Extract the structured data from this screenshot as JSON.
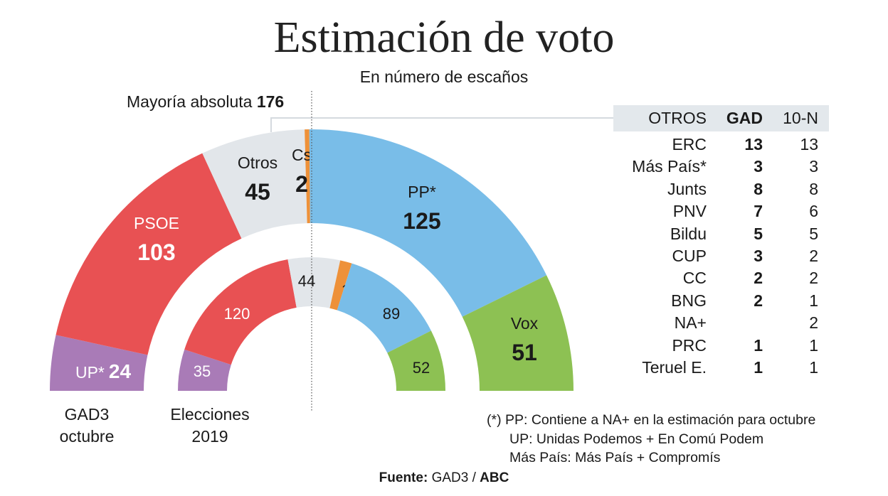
{
  "title": "Estimación de voto",
  "subtitle": "En número de escaños",
  "majority": {
    "label": "Mayoría absoluta",
    "value": "176"
  },
  "chart_data": [
    {
      "type": "pie",
      "variant": "hemicycle",
      "ring": "outer",
      "label_lines": [
        "GAD3",
        "octubre"
      ],
      "total": 350,
      "slices": [
        {
          "name": "UP*",
          "value": 24,
          "color": "#a97bb7"
        },
        {
          "name": "PSOE",
          "value": 103,
          "color": "#e85153"
        },
        {
          "name": "Otros",
          "value": 45,
          "color": "#e2e6ea"
        },
        {
          "name": "Cs",
          "value": 2,
          "color": "#ee9139"
        },
        {
          "name": "PP*",
          "value": 125,
          "color": "#79bde8"
        },
        {
          "name": "Vox",
          "value": 51,
          "color": "#8dc153"
        }
      ]
    },
    {
      "type": "pie",
      "variant": "hemicycle",
      "ring": "inner",
      "label_lines": [
        "Elecciones",
        "2019"
      ],
      "total": 350,
      "slices": [
        {
          "name": "UP",
          "value": 35,
          "color": "#a97bb7"
        },
        {
          "name": "PSOE",
          "value": 120,
          "color": "#e85153"
        },
        {
          "name": "Otros",
          "value": 44,
          "color": "#e2e6ea"
        },
        {
          "name": "Cs",
          "value": 10,
          "color": "#ee9139"
        },
        {
          "name": "PP",
          "value": 89,
          "color": "#79bde8"
        },
        {
          "name": "Vox",
          "value": 52,
          "color": "#8dc153"
        }
      ]
    },
    {
      "type": "table",
      "headers": [
        "OTROS",
        "GAD",
        "10-N"
      ],
      "rows": [
        [
          "ERC",
          "13",
          "13"
        ],
        [
          "Más País*",
          "3",
          "3"
        ],
        [
          "Junts",
          "8",
          "8"
        ],
        [
          "PNV",
          "7",
          "6"
        ],
        [
          "Bildu",
          "5",
          "5"
        ],
        [
          "CUP",
          "3",
          "2"
        ],
        [
          "CC",
          "2",
          "2"
        ],
        [
          "BNG",
          "2",
          "1"
        ],
        [
          "NA+",
          "",
          "2"
        ],
        [
          "PRC",
          "1",
          "1"
        ],
        [
          "Teruel E.",
          "1",
          "1"
        ]
      ]
    }
  ],
  "footnotes": [
    "(*) PP: Contiene a NA+ en la estimación para octubre",
    "UP: Unidas Podemos + En Comú Podem",
    "Más País: Más País + Compromís"
  ],
  "source": {
    "label": "Fuente:",
    "value": "GAD3",
    "sep": "/",
    "outlet": "ABC"
  }
}
